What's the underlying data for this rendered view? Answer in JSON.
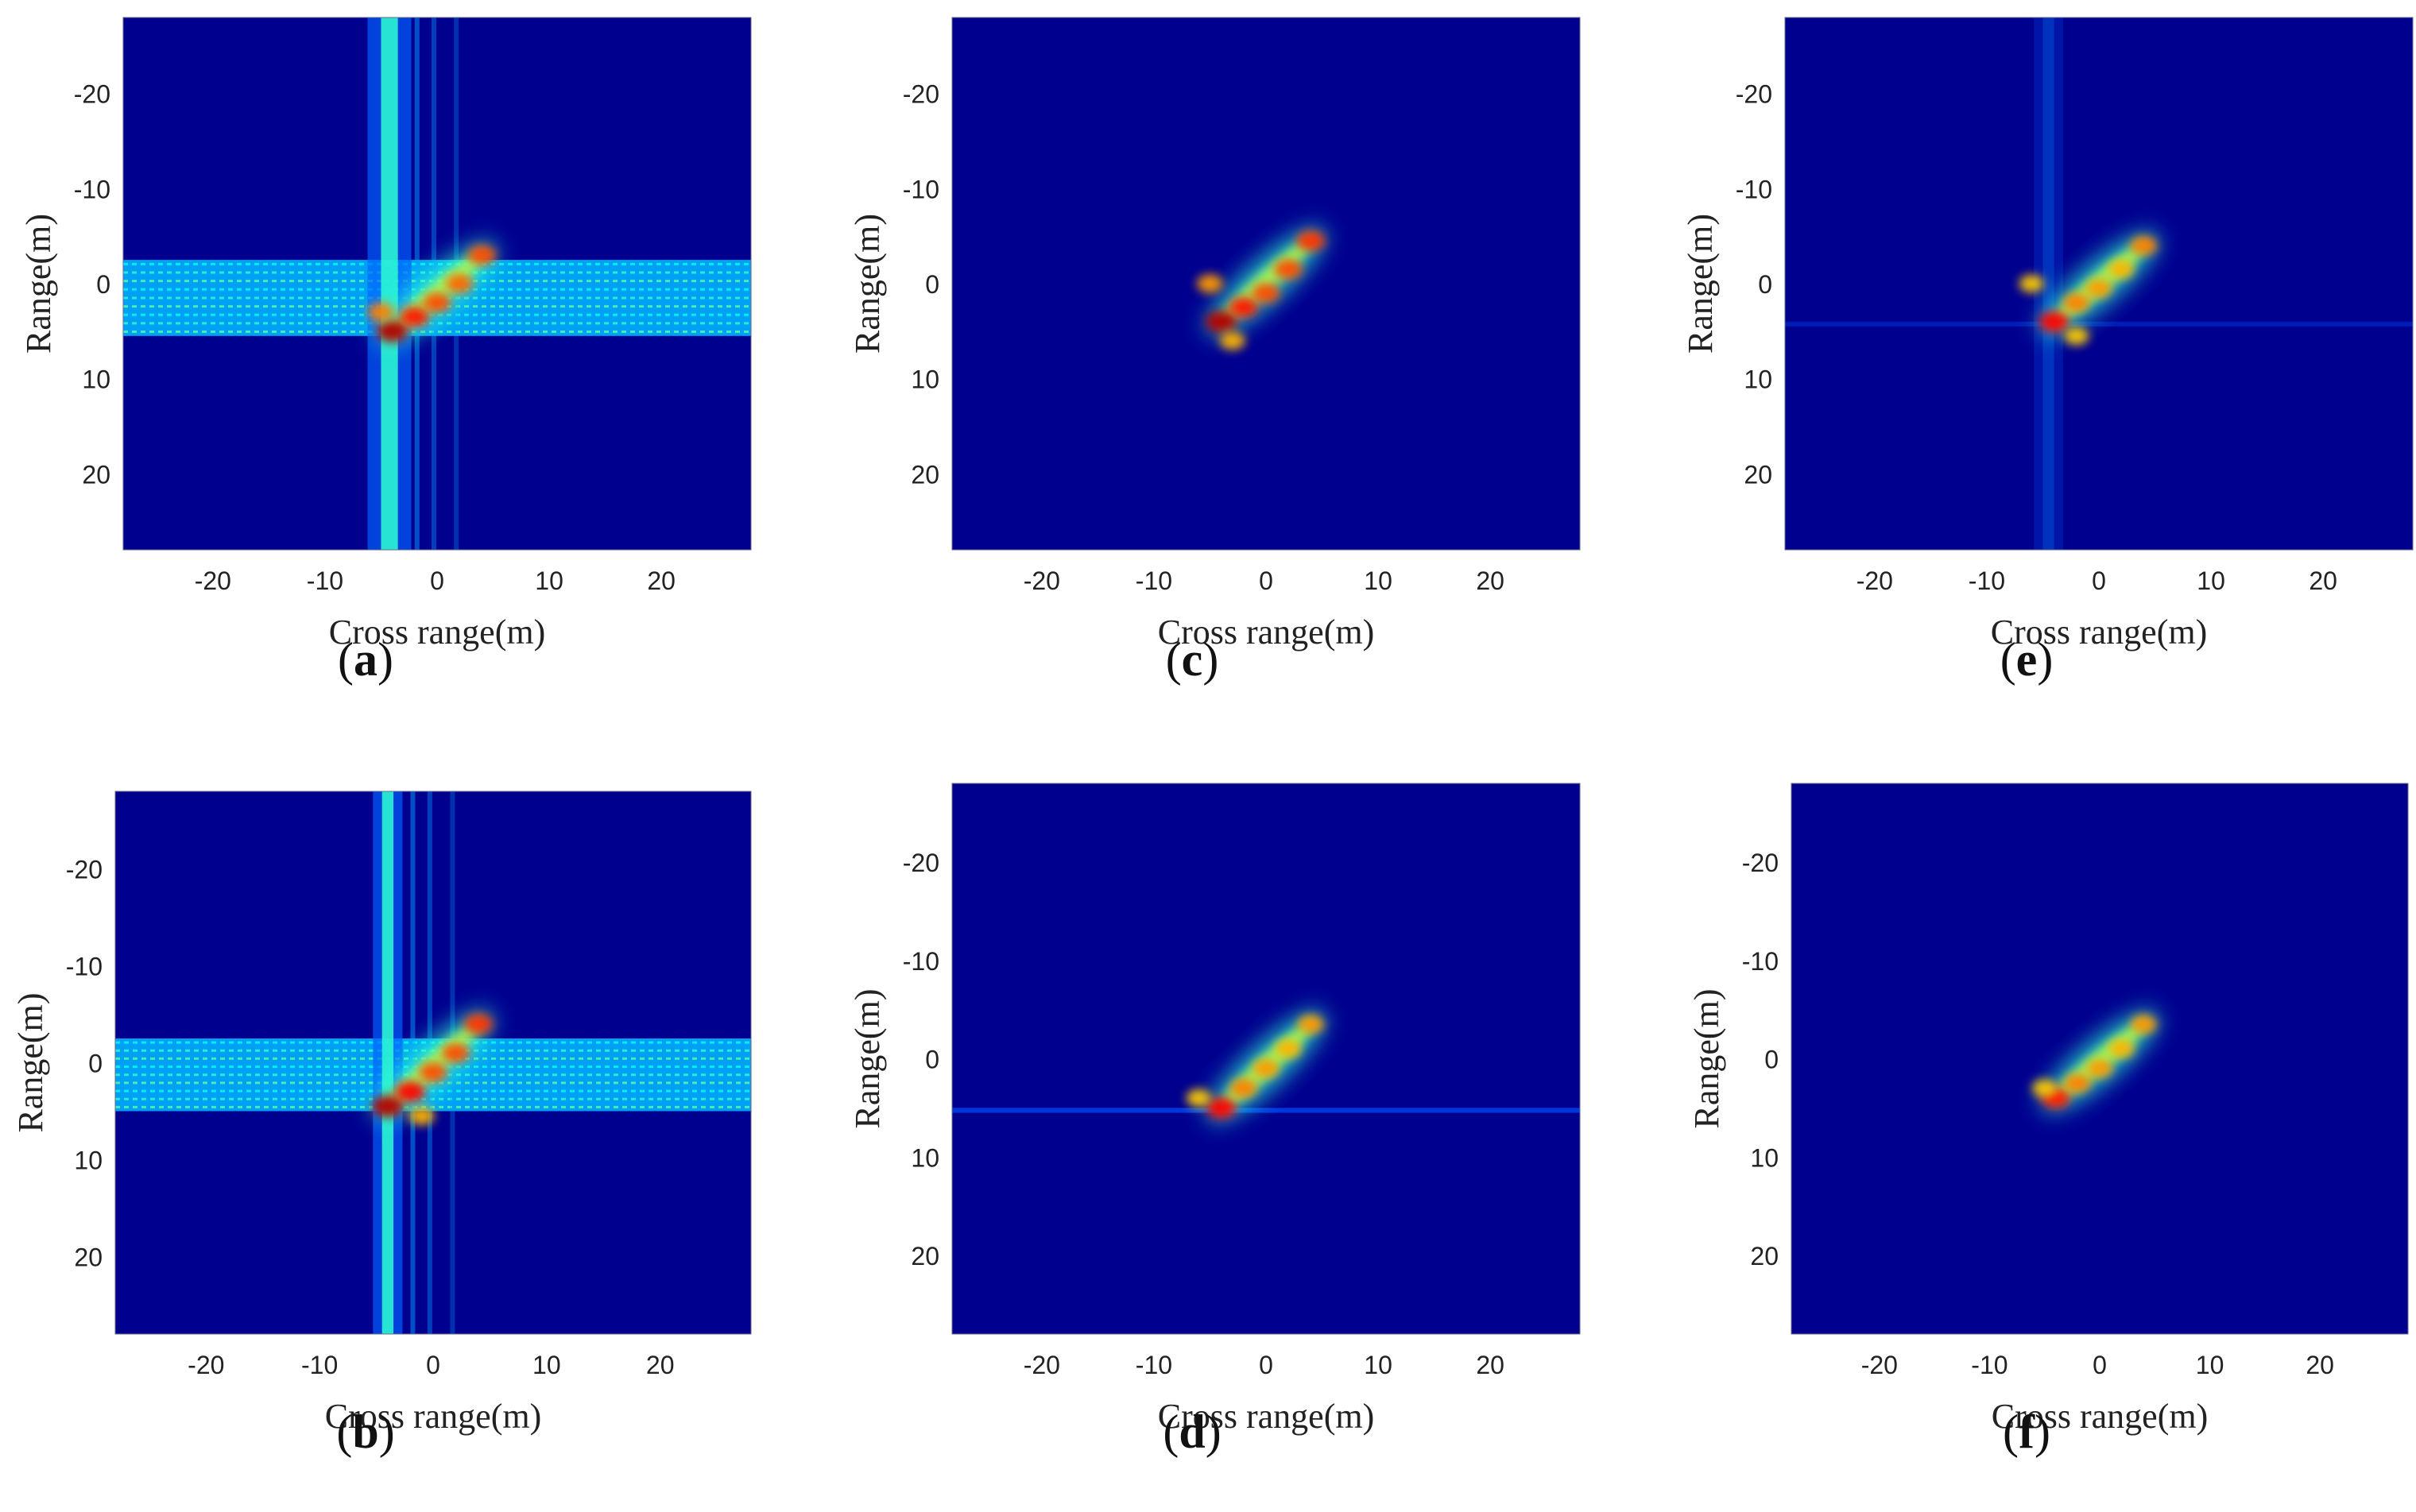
{
  "colors": {
    "background": "#00008f",
    "jet_low": "#00008f",
    "jet_high": "#b00000"
  },
  "chart_data": [
    {
      "type": "heatmap",
      "panel_label": "a",
      "xlabel": "Cross range(m)",
      "ylabel": "Range(m)",
      "xlim": [
        -28,
        28
      ],
      "ylim": [
        -28,
        28
      ],
      "y_reversed": true,
      "xticks": [
        -20,
        -10,
        0,
        10,
        20
      ],
      "yticks": [
        -20,
        -10,
        0,
        10,
        20
      ],
      "colormap": "jet",
      "artifacts": {
        "horizontal_band": [
          -2.5,
          5.5
        ],
        "vertical_streak": [
          -5,
          -3.5
        ],
        "strength": "strong"
      },
      "scatterers": [
        {
          "x": -4,
          "y": 5,
          "intensity": 1.0
        },
        {
          "x": -2,
          "y": 3.5,
          "intensity": 0.8
        },
        {
          "x": 0,
          "y": 2,
          "intensity": 0.7
        },
        {
          "x": 2,
          "y": 0,
          "intensity": 0.65
        },
        {
          "x": 4,
          "y": -3,
          "intensity": 0.7
        },
        {
          "x": -5,
          "y": 3,
          "intensity": 0.6
        }
      ]
    },
    {
      "type": "heatmap",
      "panel_label": "b",
      "xlabel": "Cross range(m)",
      "ylabel": "Range(m)",
      "xlim": [
        -28,
        28
      ],
      "ylim": [
        -28,
        28
      ],
      "y_reversed": true,
      "xticks": [
        -20,
        -10,
        0,
        10,
        20
      ],
      "yticks": [
        -20,
        -10,
        0,
        10,
        20
      ],
      "colormap": "jet",
      "artifacts": {
        "horizontal_band": [
          -2.5,
          5
        ],
        "vertical_streak": [
          -4.5,
          -3.5
        ],
        "strength": "strong"
      },
      "scatterers": [
        {
          "x": -4,
          "y": 4.5,
          "intensity": 1.0
        },
        {
          "x": -2,
          "y": 3,
          "intensity": 0.85
        },
        {
          "x": 0,
          "y": 1,
          "intensity": 0.7
        },
        {
          "x": 2,
          "y": -1,
          "intensity": 0.7
        },
        {
          "x": 4,
          "y": -4,
          "intensity": 0.75
        },
        {
          "x": -1,
          "y": 5.5,
          "intensity": 0.5
        }
      ]
    },
    {
      "type": "heatmap",
      "panel_label": "c",
      "xlabel": "Cross range(m)",
      "ylabel": "Range(m)",
      "xlim": [
        -28,
        28
      ],
      "ylim": [
        -28,
        28
      ],
      "y_reversed": true,
      "xticks": [
        -20,
        -10,
        0,
        10,
        20
      ],
      "yticks": [
        -20,
        -10,
        0,
        10,
        20
      ],
      "colormap": "jet",
      "artifacts": {
        "horizontal_band": null,
        "vertical_streak": null,
        "strength": "none"
      },
      "scatterers": [
        {
          "x": -4,
          "y": 4,
          "intensity": 1.0
        },
        {
          "x": -2,
          "y": 2.5,
          "intensity": 0.8
        },
        {
          "x": 0,
          "y": 1,
          "intensity": 0.7
        },
        {
          "x": 2,
          "y": -1.5,
          "intensity": 0.7
        },
        {
          "x": 4,
          "y": -4.5,
          "intensity": 0.75
        },
        {
          "x": -5,
          "y": 0,
          "intensity": 0.55
        },
        {
          "x": -3,
          "y": 6,
          "intensity": 0.5
        }
      ]
    },
    {
      "type": "heatmap",
      "panel_label": "d",
      "xlabel": "Cross range(m)",
      "ylabel": "Range(m)",
      "xlim": [
        -28,
        28
      ],
      "ylim": [
        -28,
        28
      ],
      "y_reversed": true,
      "xticks": [
        -20,
        -10,
        0,
        10,
        20
      ],
      "yticks": [
        -20,
        -10,
        0,
        10,
        20
      ],
      "colormap": "jet",
      "artifacts": {
        "horizontal_band": [
          5,
          5.5
        ],
        "vertical_streak": null,
        "strength": "weak"
      },
      "scatterers": [
        {
          "x": -4,
          "y": 5,
          "intensity": 0.85
        },
        {
          "x": -2,
          "y": 3,
          "intensity": 0.6
        },
        {
          "x": 0,
          "y": 1,
          "intensity": 0.55
        },
        {
          "x": 2,
          "y": -1,
          "intensity": 0.5
        },
        {
          "x": 4,
          "y": -3.5,
          "intensity": 0.55
        },
        {
          "x": -6,
          "y": 4,
          "intensity": 0.45
        }
      ]
    },
    {
      "type": "heatmap",
      "panel_label": "e",
      "xlabel": "Cross range(m)",
      "ylabel": "Range(m)",
      "xlim": [
        -28,
        28
      ],
      "ylim": [
        -28,
        28
      ],
      "y_reversed": true,
      "xticks": [
        -20,
        -10,
        0,
        10,
        20
      ],
      "yticks": [
        -20,
        -10,
        0,
        10,
        20
      ],
      "colormap": "jet",
      "artifacts": {
        "horizontal_band": [
          4,
          4.5
        ],
        "vertical_streak": [
          -5,
          -4
        ],
        "strength": "faint"
      },
      "scatterers": [
        {
          "x": -4,
          "y": 4,
          "intensity": 0.85
        },
        {
          "x": -2,
          "y": 2,
          "intensity": 0.6
        },
        {
          "x": 0,
          "y": 0.5,
          "intensity": 0.55
        },
        {
          "x": 2,
          "y": -1.5,
          "intensity": 0.5
        },
        {
          "x": 4,
          "y": -4,
          "intensity": 0.6
        },
        {
          "x": -6,
          "y": 0,
          "intensity": 0.45
        },
        {
          "x": -2,
          "y": 5.5,
          "intensity": 0.45
        }
      ]
    },
    {
      "type": "heatmap",
      "panel_label": "f",
      "xlabel": "Cross range(m)",
      "ylabel": "Range(m)",
      "xlim": [
        -28,
        28
      ],
      "ylim": [
        -28,
        28
      ],
      "y_reversed": true,
      "xticks": [
        -20,
        -10,
        0,
        10,
        20
      ],
      "yticks": [
        -20,
        -10,
        0,
        10,
        20
      ],
      "colormap": "jet",
      "artifacts": {
        "horizontal_band": null,
        "vertical_streak": null,
        "strength": "none"
      },
      "scatterers": [
        {
          "x": -4,
          "y": 4,
          "intensity": 0.8
        },
        {
          "x": -2,
          "y": 2.5,
          "intensity": 0.6
        },
        {
          "x": 0,
          "y": 1,
          "intensity": 0.55
        },
        {
          "x": 2,
          "y": -1,
          "intensity": 0.5
        },
        {
          "x": 4,
          "y": -3.5,
          "intensity": 0.55
        },
        {
          "x": -5,
          "y": 3,
          "intensity": 0.45
        }
      ]
    }
  ]
}
